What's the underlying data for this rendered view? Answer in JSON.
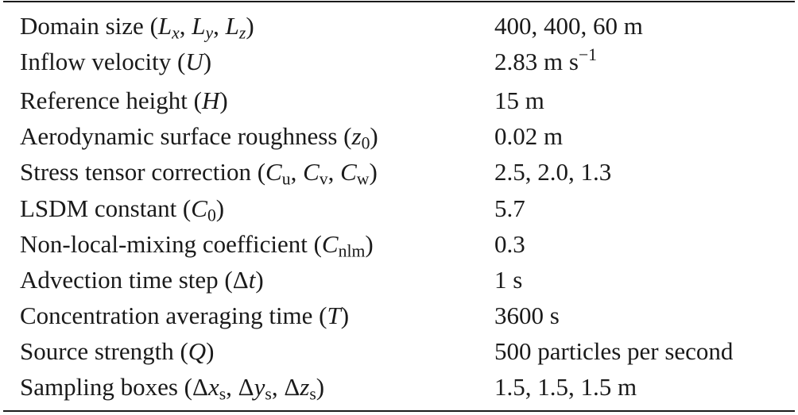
{
  "table": {
    "rows": [
      {
        "parameter": "Domain size (",
        "symbol": "Lx, Ly, Lz",
        "value": "400, 400, 60 m"
      },
      {
        "parameter": "Inflow velocity (",
        "symbol": "U",
        "value": "2.83 m s",
        "value_sup": "−1"
      },
      {
        "parameter": "Reference height (",
        "symbol": "H",
        "value": "15 m"
      },
      {
        "parameter": "Aerodynamic surface roughness (",
        "symbol": "z0",
        "value": "0.02 m"
      },
      {
        "parameter": "Stress tensor correction (",
        "symbol": "Cu, Cv, Cw",
        "value": "2.5, 2.0, 1.3"
      },
      {
        "parameter": "LSDM constant (",
        "symbol": "C0",
        "value": "5.7"
      },
      {
        "parameter": "Non-local-mixing coefficient (",
        "symbol": "Cnlm",
        "value": "0.3"
      },
      {
        "parameter": "Advection time step (",
        "symbol": "Δt",
        "value": "1 s"
      },
      {
        "parameter": "Concentration averaging time (",
        "symbol": "T",
        "value": "3600 s"
      },
      {
        "parameter": "Source strength (",
        "symbol": "Q",
        "value": "500 particles per second"
      },
      {
        "parameter": "Sampling boxes (",
        "symbol": "Δxs, Δys, Δzs",
        "value": "1.5, 1.5, 1.5 m"
      }
    ]
  }
}
